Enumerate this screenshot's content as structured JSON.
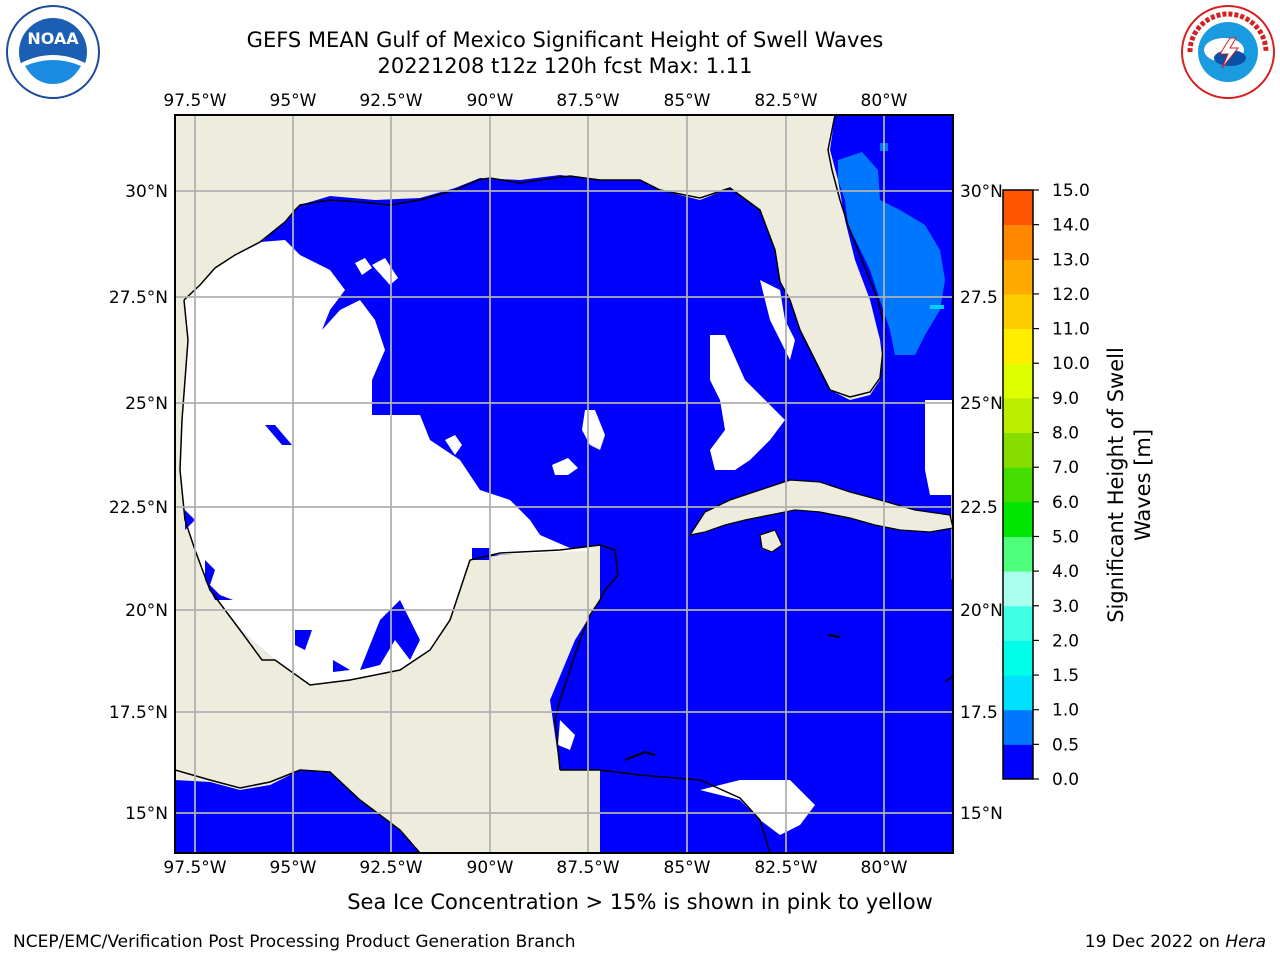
{
  "header": {
    "title_line1": "GEFS MEAN Gulf of Mexico Significant Height of Swell Waves",
    "title_line2": "20221208 t12z 120h fcst   Max: 1.11"
  },
  "logos": {
    "left": "NOAA",
    "left_ring_text": "NATIONAL OCEANIC AND ATMOSPHERIC ADMINISTRATION · U.S. DEPARTMENT OF COMMERCE",
    "right_ring_text": "NATIONAL WEATHER SERVICE"
  },
  "map": {
    "lon_labels": [
      "97.5°W",
      "95°W",
      "92.5°W",
      "90°W",
      "87.5°W",
      "85°W",
      "82.5°W",
      "80°W"
    ],
    "lat_labels_left": [
      "30°N",
      "27.5°N",
      "25°N",
      "22.5°N",
      "20°N",
      "17.5°N",
      "15°N"
    ],
    "lat_labels_right": [
      "30°N",
      "27.5",
      "25°N",
      "22.5",
      "20°N",
      "17.5",
      "15°N"
    ],
    "colors": {
      "land": "#eeeddd",
      "ocean_low": "#0000ff",
      "ocean_mid": "#0077ff",
      "no_data": "#ffffff",
      "grid": "#b0b0b0"
    }
  },
  "colorbar": {
    "label_line1": "Significant Height of Swell",
    "label_line2": "Waves [m]",
    "ticks": [
      "0.0",
      "0.5",
      "1.0",
      "1.5",
      "2.0",
      "3.0",
      "4.0",
      "5.0",
      "6.0",
      "7.0",
      "8.0",
      "9.0",
      "10.0",
      "11.0",
      "12.0",
      "13.0",
      "14.0",
      "15.0"
    ],
    "colors": [
      "#0000ff",
      "#0077ff",
      "#00e1ff",
      "#00ffe6",
      "#41ffe4",
      "#aaffee",
      "#4dff7a",
      "#00e600",
      "#44dd00",
      "#88dd00",
      "#bbee00",
      "#ddff00",
      "#ffee00",
      "#ffcc00",
      "#ffaa00",
      "#ff8800",
      "#ff5500",
      "#ff2200"
    ]
  },
  "note": "Sea Ice Concentration > 15% is shown in pink to yellow",
  "footer": {
    "left": "NCEP/EMC/Verification Post Processing Product Generation Branch",
    "right_date": "19 Dec 2022 on",
    "right_host": "Hera"
  }
}
